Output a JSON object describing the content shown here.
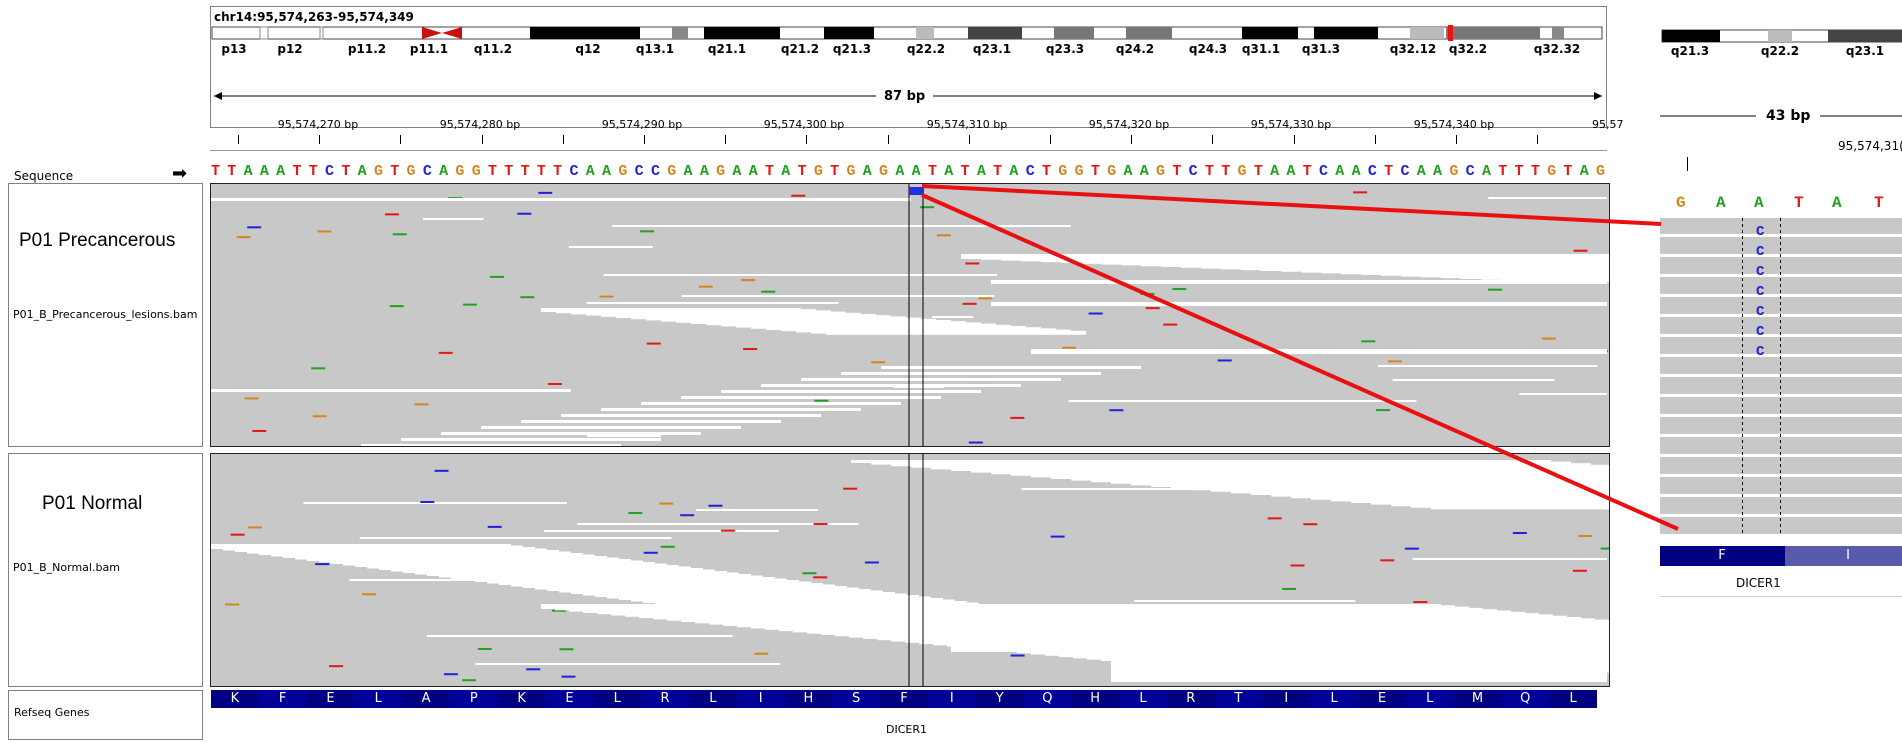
{
  "locus": "chr14:95,574,263-95,574,349",
  "cytobands": [
    "p13",
    "p12",
    "p11.2",
    "p11.1",
    "q11.2",
    "q12",
    "q13.1",
    "q21.1",
    "q21.2",
    "q21.3",
    "q22.2",
    "q23.1",
    "q23.3",
    "q24.2",
    "q24.3",
    "q31.1",
    "q31.3",
    "q32.12",
    "q32.2",
    "q32.32"
  ],
  "ruler": {
    "span": "87 bp",
    "ticks": [
      "95,574,270 bp",
      "95,574,280 bp",
      "95,574,290 bp",
      "95,574,300 bp",
      "95,574,310 bp",
      "95,574,320 bp",
      "95,574,330 bp",
      "95,574,340 bp",
      "95,57"
    ]
  },
  "sequence": {
    "label": "Sequence",
    "arrow": "➡",
    "bases": "TTAAATTCTAGTGCAGGTTTTTCAAGCCGAAGAATATGTGAGAATATATACTGGTGAAGTCTTGTAATCAACTCAAGCATTTGTAG"
  },
  "tracks": [
    {
      "name": "P01 Precancerous",
      "file": "P01_B_Precancerous_lesions.bam"
    },
    {
      "name": "P01 Normal",
      "file": "P01_B_Normal.bam"
    }
  ],
  "refseq": {
    "label": "Refseq Genes",
    "gene": "DICER1",
    "aminoacids": [
      "K",
      "F",
      "E",
      "L",
      "A",
      "P",
      "K",
      "E",
      "L",
      "R",
      "L",
      "I",
      "H",
      "S",
      "F",
      "I",
      "Y",
      "Q",
      "H",
      "L",
      "R",
      "T",
      "I",
      "L",
      "E",
      "L",
      "M",
      "Q",
      "L"
    ]
  },
  "zoom": {
    "cytobands": [
      "q21.3",
      "q22.2",
      "q23.1"
    ],
    "span": "43 bp",
    "tick": "95,574,31(",
    "bases": [
      "G",
      "A",
      "A",
      "T",
      "A",
      "T"
    ],
    "alt_base": "C",
    "alt_count": 7,
    "aminoacids": [
      "F",
      "I"
    ],
    "gene": "DICER1"
  },
  "colors": {
    "A": "#22a022",
    "C": "#2020d8",
    "G": "#d2861e",
    "T": "#e01818",
    "read_bg": "#c8c8c8",
    "aa_dark": "#000080",
    "aa_light": "#5a5aaa",
    "callout": "#e81010"
  }
}
